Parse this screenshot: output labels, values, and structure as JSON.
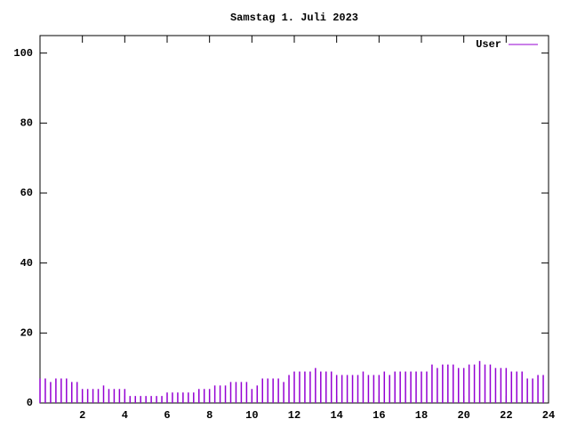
{
  "chart_data": {
    "type": "impulse",
    "title": "Samstag 1. Juli 2023",
    "series": [
      {
        "name": "User",
        "color": "#9400d3",
        "x": [
          0,
          0.25,
          0.5,
          0.75,
          1,
          1.25,
          1.5,
          1.75,
          2,
          2.25,
          2.5,
          2.75,
          3,
          3.25,
          3.5,
          3.75,
          4,
          4.25,
          4.5,
          4.75,
          5,
          5.25,
          5.5,
          5.75,
          6,
          6.25,
          6.5,
          6.75,
          7,
          7.25,
          7.5,
          7.75,
          8,
          8.25,
          8.5,
          8.75,
          9,
          9.25,
          9.5,
          9.75,
          10,
          10.25,
          10.5,
          10.75,
          11,
          11.25,
          11.5,
          11.75,
          12,
          12.25,
          12.5,
          12.75,
          13,
          13.25,
          13.5,
          13.75,
          14,
          14.25,
          14.5,
          14.75,
          15,
          15.25,
          15.5,
          15.75,
          16,
          16.25,
          16.5,
          16.75,
          17,
          17.25,
          17.5,
          17.75,
          18,
          18.25,
          18.5,
          18.75,
          19,
          19.25,
          19.5,
          19.75,
          20,
          20.25,
          20.5,
          20.75,
          21,
          21.25,
          21.5,
          21.75,
          22,
          22.25,
          22.5,
          22.75,
          23,
          23.25,
          23.5,
          23.75
        ],
        "values": [
          7,
          7,
          6,
          7,
          7,
          7,
          6,
          6,
          4,
          4,
          4,
          4,
          5,
          4,
          4,
          4,
          4,
          2,
          2,
          2,
          2,
          2,
          2,
          2,
          3,
          3,
          3,
          3,
          3,
          3,
          4,
          4,
          4,
          5,
          5,
          5,
          6,
          6,
          6,
          6,
          4,
          5,
          7,
          7,
          7,
          7,
          6,
          8,
          9,
          9,
          9,
          9,
          10,
          9,
          9,
          9,
          8,
          8,
          8,
          8,
          8,
          9,
          8,
          8,
          8,
          9,
          8,
          9,
          9,
          9,
          9,
          9,
          9,
          9,
          11,
          10,
          11,
          11,
          11,
          10,
          10,
          11,
          11,
          12,
          11,
          11,
          10,
          10,
          10,
          9,
          9,
          9,
          7,
          7,
          8,
          8
        ]
      }
    ],
    "xlim": [
      0,
      24
    ],
    "xticks": [
      2,
      4,
      6,
      8,
      10,
      12,
      14,
      16,
      18,
      20,
      22,
      24
    ],
    "ylim": [
      0,
      105
    ],
    "yticks": [
      0,
      20,
      40,
      60,
      80,
      100
    ]
  }
}
